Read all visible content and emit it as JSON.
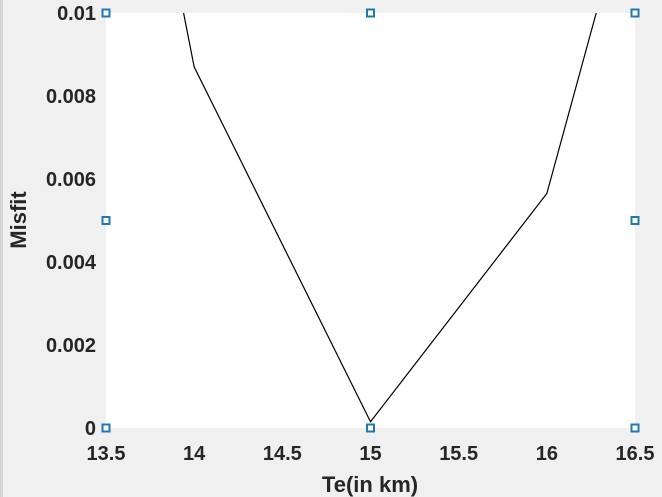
{
  "chart_data": {
    "type": "line",
    "title": "",
    "xlabel": "Te(in km)",
    "ylabel": "Misfit",
    "xlim": [
      13.5,
      16.5
    ],
    "ylim": [
      0,
      0.01
    ],
    "xticks": [
      "13.5",
      "14",
      "14.5",
      "15",
      "15.5",
      "16",
      "16.5"
    ],
    "yticks": [
      "0",
      "0.002",
      "0.004",
      "0.006",
      "0.008",
      "0.01"
    ],
    "series": [
      {
        "color": "#000000",
        "x": [
          13.94,
          14.0,
          15.0,
          16.0,
          16.28
        ],
        "y": [
          0.01,
          0.0087,
          0.00015,
          0.00565,
          0.01
        ]
      }
    ],
    "markers": {
      "color": "#1f77b4",
      "x": [
        13.5,
        15.0,
        16.5,
        13.5,
        16.5,
        13.5,
        15.0,
        16.5
      ],
      "y": [
        0.01,
        0.01,
        0.01,
        0.005,
        0.005,
        0,
        0,
        0
      ]
    },
    "grid": false
  }
}
